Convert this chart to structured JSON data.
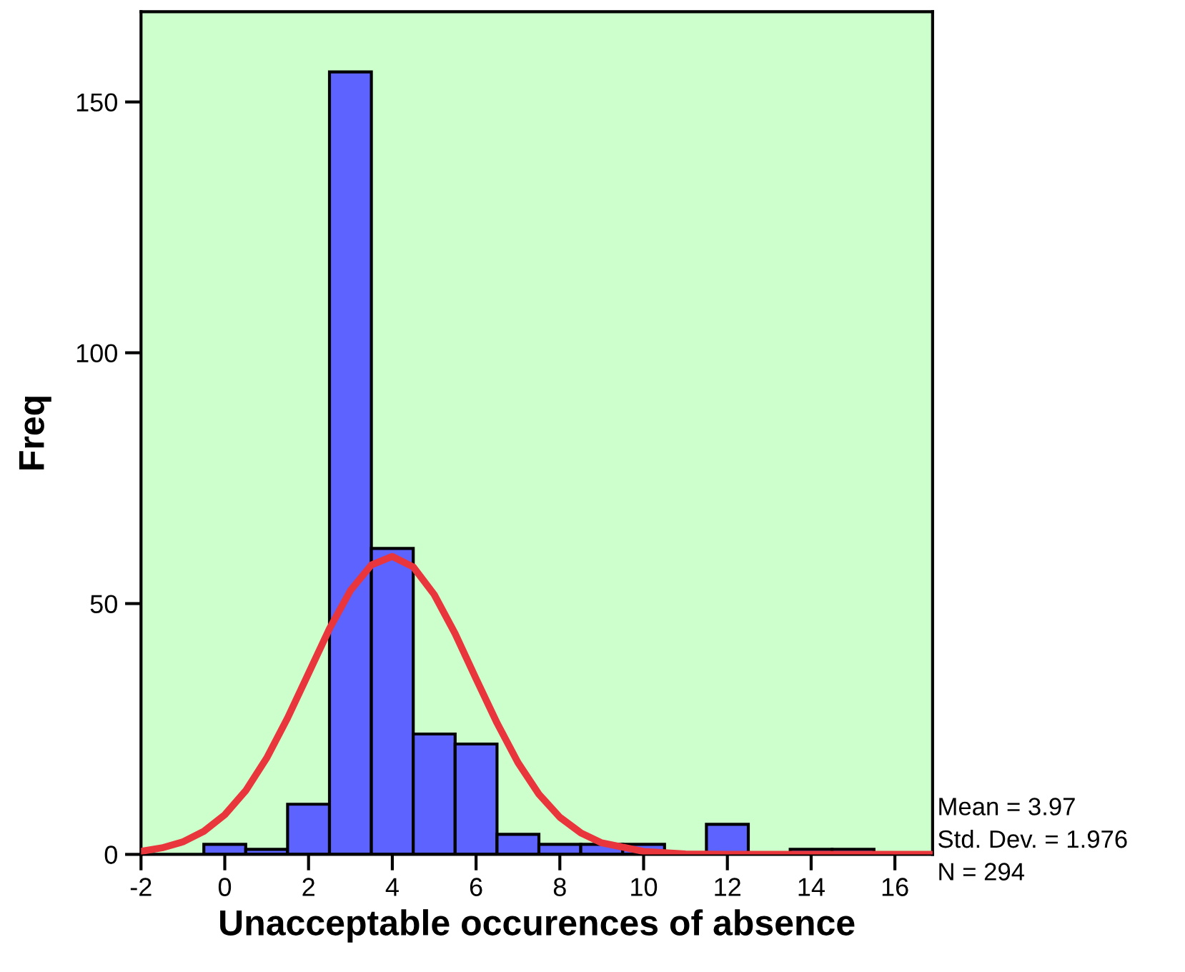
{
  "chart_data": {
    "type": "histogram",
    "xlabel": "Unacceptable occurences of absence",
    "ylabel": "Freq",
    "bins": [
      -0.5,
      0.5,
      1.5,
      2.5,
      3.5,
      4.5,
      5.5,
      6.5,
      7.5,
      8.5,
      9.5,
      10.5,
      11.5,
      12.5,
      13.5,
      14.5,
      15.5
    ],
    "values": [
      2,
      1,
      10,
      156,
      61,
      24,
      22,
      4,
      2,
      2,
      2,
      0,
      6,
      0,
      1,
      1
    ],
    "color": "#5c63ff",
    "series": [
      {
        "type": "line",
        "color": "#e8363c",
        "x": [
          -2,
          -1.5,
          -1,
          -0.5,
          0,
          0.5,
          1,
          1.5,
          2,
          2.5,
          3,
          3.5,
          4,
          4.5,
          5,
          5.5,
          6,
          6.5,
          7,
          7.5,
          8,
          8.5,
          9,
          10,
          11,
          12,
          14,
          16,
          16.9
        ],
        "values": [
          0.6,
          1.3,
          2.5,
          4.6,
          7.9,
          12.7,
          19.2,
          27.2,
          36.1,
          45.0,
          52.6,
          57.7,
          59.4,
          57.3,
          51.8,
          44.0,
          35.0,
          26.2,
          18.3,
          12.0,
          7.4,
          4.3,
          2.3,
          0.6,
          0.1,
          0,
          0,
          0,
          0
        ]
      }
    ],
    "xlim": [
      -2,
      16.9
    ],
    "ylim": [
      0,
      168
    ],
    "xticks": [
      -2,
      0,
      2,
      4,
      6,
      8,
      10,
      12,
      14,
      16
    ],
    "yticks": [
      0,
      50,
      100,
      150
    ],
    "grid": false,
    "legend": false,
    "annotations": [
      "Mean = 3.97",
      "Std. Dev. = 1.976",
      "N = 294"
    ]
  }
}
